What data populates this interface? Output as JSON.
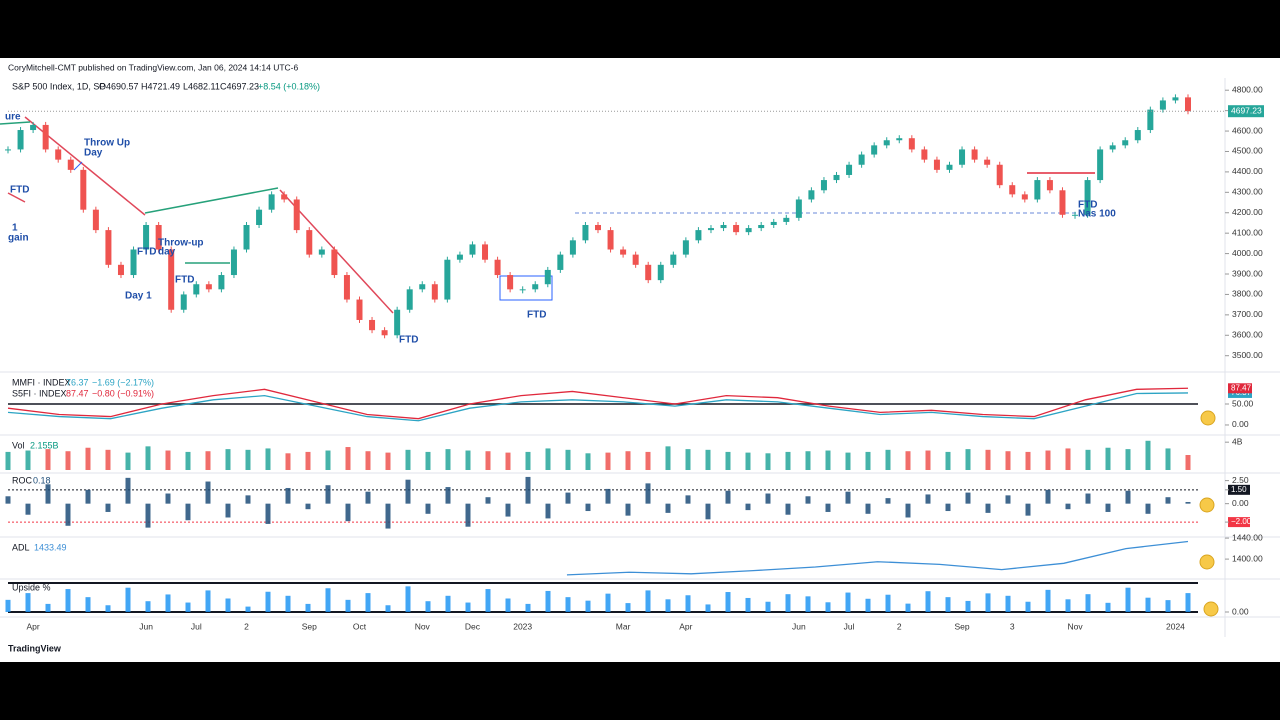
{
  "header": {
    "publisher": "CoryMitchell-CMT published on TradingView.com, Jan 06, 2024 14:14 UTC-6",
    "symbol": "S&P 500 Index, 1D, SP",
    "open": "O4690.57",
    "high": "H4721.49",
    "low": "L4682.11",
    "close": "C4697.23",
    "change": "+8.54 (+0.18%)"
  },
  "annotations": [
    "ure",
    "Throw Up",
    "Day",
    "FTD",
    "1",
    "gain",
    "FTD",
    "Throw-up",
    "day",
    "FTD",
    "Day 1",
    "FTD",
    "FTD",
    "FTD",
    "Nas 100"
  ],
  "brand": "TradingView",
  "chart_data": [
    {
      "type": "candlestick",
      "up_color": "#26a69a",
      "down_color": "#ef5350",
      "categories": [
        null,
        null,
        "Apr",
        null,
        null,
        null,
        null,
        null,
        null,
        null,
        null,
        "Jun",
        null,
        null,
        null,
        "Jul",
        null,
        null,
        null,
        "2",
        null,
        null,
        null,
        null,
        "Sep",
        null,
        null,
        null,
        "Oct",
        null,
        null,
        null,
        null,
        "Nov",
        null,
        null,
        null,
        "Dec",
        null,
        null,
        null,
        "2023",
        null,
        null,
        null,
        null,
        null,
        null,
        null,
        "Mar",
        null,
        null,
        null,
        null,
        "Apr",
        null,
        null,
        null,
        null,
        null,
        null,
        null,
        null,
        "Jun",
        null,
        null,
        null,
        "Jul",
        null,
        null,
        null,
        "2",
        null,
        null,
        null,
        null,
        "Sep",
        null,
        null,
        null,
        "3",
        null,
        null,
        null,
        null,
        "Nov",
        null,
        null,
        null,
        null,
        null,
        null,
        null,
        "2024",
        null
      ],
      "values": [
        4510,
        4605,
        4630,
        4510,
        4460,
        4410,
        4215,
        4115,
        3945,
        3895,
        4020,
        4140,
        4020,
        3725,
        3800,
        3850,
        3825,
        3895,
        4020,
        4140,
        4215,
        4290,
        4265,
        4115,
        3995,
        4020,
        3895,
        3775,
        3675,
        3625,
        3600,
        3725,
        3825,
        3850,
        3775,
        3970,
        3995,
        4045,
        3970,
        3895,
        3825,
        3825,
        3850,
        3920,
        3995,
        4065,
        4140,
        4115,
        4020,
        3995,
        3945,
        3870,
        3945,
        3995,
        4065,
        4115,
        4125,
        4140,
        4105,
        4125,
        4140,
        4155,
        4175,
        4265,
        4310,
        4360,
        4385,
        4435,
        4485,
        4530,
        4555,
        4565,
        4510,
        4460,
        4410,
        4435,
        4510,
        4460,
        4435,
        4335,
        4290,
        4265,
        4360,
        4310,
        4190,
        4190,
        4360,
        4510,
        4530,
        4555,
        4605,
        4705,
        4750,
        4765,
        4697.23
      ],
      "ylim": [
        3430,
        4850
      ],
      "yticks": [
        {
          "value": 4800,
          "label": "4800.00"
        },
        {
          "value": 4700,
          "label": "4700.00"
        },
        {
          "value": 4600,
          "label": "4600.00"
        },
        {
          "value": 4500,
          "label": "4500.00"
        },
        {
          "value": 4400,
          "label": "4400.00"
        },
        {
          "value": 4300,
          "label": "4300.00"
        },
        {
          "value": 4200,
          "label": "4200.00"
        },
        {
          "value": 4100,
          "label": "4100.00"
        },
        {
          "value": 4000,
          "label": "4000.00"
        },
        {
          "value": 3900,
          "label": "3900.00"
        },
        {
          "value": 3800,
          "label": "3800.00"
        },
        {
          "value": 3700,
          "label": "3700.00"
        },
        {
          "value": 3600,
          "label": "3600.00"
        },
        {
          "value": 3500,
          "label": "3500.00"
        }
      ]
    },
    {
      "type": "line",
      "hline": 50,
      "series": [
        {
          "name": "MMFI · INDEX",
          "color": "#2ca4c4",
          "change": "−1.69 (−2.17%)",
          "values": [
            30,
            20,
            15,
            40,
            60,
            70,
            45,
            20,
            10,
            40,
            55,
            60,
            55,
            45,
            60,
            55,
            40,
            25,
            30,
            20,
            15,
            45,
            75,
            76.37
          ]
        },
        {
          "name": "S5FI · INDEX",
          "color": "#e0283c",
          "change": "−0.80 (−0.91%)",
          "values": [
            40,
            25,
            20,
            50,
            70,
            85,
            55,
            25,
            15,
            50,
            70,
            80,
            65,
            50,
            70,
            65,
            45,
            30,
            35,
            25,
            20,
            60,
            85,
            87.47
          ]
        }
      ],
      "ylim": [
        -12,
        112
      ],
      "yticks": [
        {
          "value": 50,
          "label": "50.00"
        },
        {
          "value": 0,
          "label": "0.00"
        }
      ]
    },
    {
      "type": "bar",
      "name": "Vol",
      "legend_value": "2.155B",
      "up_color": "#26a69a",
      "down_color": "#ef5350",
      "values": [
        2.6,
        2.8,
        3.0,
        2.7,
        3.2,
        2.9,
        2.5,
        3.4,
        2.8,
        2.6,
        2.7,
        3.0,
        2.9,
        3.1,
        2.4,
        2.6,
        2.8,
        3.3,
        2.7,
        2.5,
        2.9,
        2.6,
        3.0,
        2.8,
        2.7,
        2.5,
        2.6,
        3.1,
        2.9,
        2.4,
        2.5,
        2.7,
        2.6,
        3.4,
        3.0,
        2.9,
        2.6,
        2.5,
        2.4,
        2.6,
        2.7,
        2.8,
        2.5,
        2.6,
        2.9,
        2.7,
        2.8,
        2.6,
        3.0,
        2.9,
        2.7,
        2.6,
        2.8,
        3.1,
        2.9,
        3.2,
        3.0,
        4.2,
        3.1,
        2.155
      ],
      "ylim": [
        0,
        4.6
      ],
      "yticks": [
        {
          "value": 4,
          "label": "4B"
        }
      ]
    },
    {
      "type": "bar",
      "name": "ROC",
      "color": "#1f4e79",
      "values": [
        0.8,
        -1.2,
        2.1,
        -2.4,
        1.5,
        -0.9,
        2.8,
        -2.6,
        1.1,
        -1.8,
        2.4,
        -1.5,
        0.9,
        -2.2,
        1.7,
        -0.6,
        2.0,
        -1.9,
        1.3,
        -2.7,
        2.6,
        -1.1,
        1.8,
        -2.5,
        0.7,
        -1.4,
        2.9,
        -1.6,
        1.2,
        -0.8,
        1.6,
        -1.3,
        2.2,
        -1.0,
        0.9,
        -1.7,
        1.4,
        -0.7,
        1.1,
        -1.2,
        0.8,
        -0.9,
        1.3,
        -1.1,
        0.6,
        -1.5,
        1.0,
        -0.8,
        1.2,
        -1.0,
        0.9,
        -1.3,
        1.5,
        -0.6,
        1.1,
        -0.9,
        1.4,
        -1.1,
        0.7,
        0.18
      ],
      "ylim": [
        -3.4,
        3.0
      ],
      "levels": [
        {
          "value": 1.5,
          "color": "#131722"
        },
        {
          "value": -2,
          "color": "#f23645"
        }
      ],
      "yticks": [
        {
          "value": 2.5,
          "label": "2.50"
        },
        {
          "value": 1.5,
          "label": "1.50"
        },
        {
          "value": 0,
          "label": "0.00"
        },
        {
          "value": -2,
          "label": "−2.00"
        }
      ]
    },
    {
      "type": "line",
      "name": "ADL",
      "color": "#3d8fd6",
      "values": [
        null,
        null,
        null,
        null,
        null,
        null,
        null,
        null,
        null,
        1370,
        1375,
        1372,
        1378,
        1385,
        1395,
        1390,
        1380,
        1392,
        1420,
        1433.49
      ],
      "ylim": [
        1364,
        1444
      ],
      "yticks": [
        {
          "value": 1440,
          "label": "1440.00"
        },
        {
          "value": 1400,
          "label": "1400.00"
        }
      ]
    },
    {
      "type": "bar",
      "name": "Upside %",
      "color": "#2196f3",
      "values": [
        45,
        70,
        30,
        85,
        55,
        25,
        90,
        40,
        65,
        35,
        80,
        50,
        20,
        75,
        60,
        30,
        88,
        45,
        70,
        25,
        95,
        40,
        60,
        35,
        85,
        50,
        30,
        78,
        55,
        42,
        68,
        33,
        80,
        47,
        62,
        28,
        74,
        52,
        38,
        66,
        58,
        36,
        72,
        49,
        64,
        31,
        77,
        55,
        41,
        69,
        60,
        38,
        82,
        47,
        66,
        34,
        90,
        53,
        44,
        70
      ],
      "ylim": [
        0,
        100
      ],
      "yticks": [
        {
          "value": 0,
          "label": "0.00"
        }
      ]
    }
  ]
}
